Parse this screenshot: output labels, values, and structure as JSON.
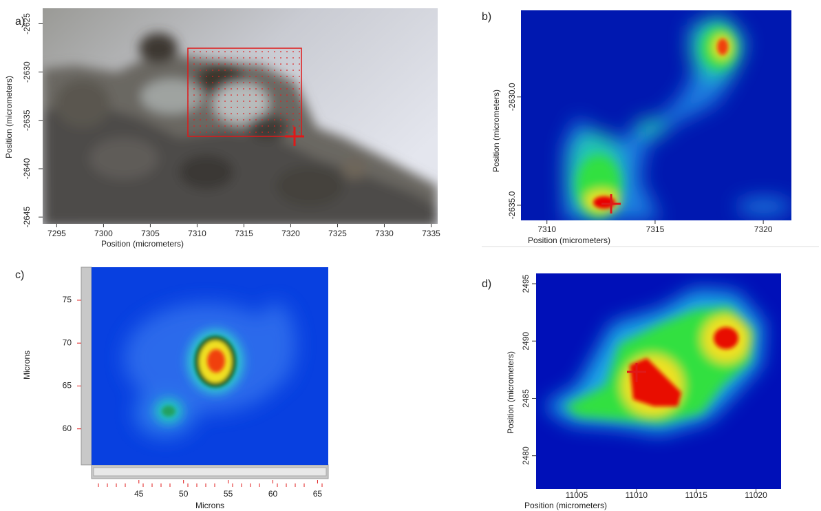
{
  "chart_data": [
    {
      "type": "image",
      "label": "a)",
      "xlabel": "Position (micrometers)",
      "ylabel": "Position (micrometers)",
      "xlim": [
        7293.5,
        7335.7
      ],
      "ylim": [
        -2645.7,
        -2623.4
      ],
      "xticks": [
        7295,
        7300,
        7305,
        7310,
        7315,
        7320,
        7325,
        7330,
        7335
      ],
      "yticks": [
        -2645,
        -2640,
        -2635,
        -2630,
        -2625
      ]
    },
    {
      "type": "heatmap",
      "label": "b)",
      "xlabel": "Position (micrometers)",
      "ylabel": "Position (micrometers)",
      "xlim": [
        7308.8,
        7321.3
      ],
      "ylim": [
        -2635.7,
        -2626.0
      ],
      "xticks": [
        7310,
        7315,
        7320
      ],
      "yticks": [
        {
          "value": -2635,
          "label": "-2635.0"
        },
        {
          "value": -2630,
          "label": "-2630.0"
        }
      ]
    },
    {
      "type": "heatmap",
      "label": "c)",
      "xlabel": "Microns",
      "ylabel": "Microns",
      "xlim": [
        39.7,
        66.2
      ],
      "ylim": [
        55.8,
        78.85
      ],
      "xticks": [
        45,
        50,
        55,
        60,
        65
      ],
      "yticks": [
        60,
        65,
        70,
        75
      ]
    },
    {
      "type": "heatmap",
      "label": "d)",
      "xlabel": "Position (micrometers)",
      "ylabel": "Position (micrometers)",
      "xlim": [
        11001.6,
        11022.1
      ],
      "ylim": [
        2477.1,
        2495.9
      ],
      "xticks": [
        11005,
        11010,
        11015,
        11020
      ],
      "yticks": [
        2480,
        2485,
        2490,
        2495
      ]
    }
  ]
}
